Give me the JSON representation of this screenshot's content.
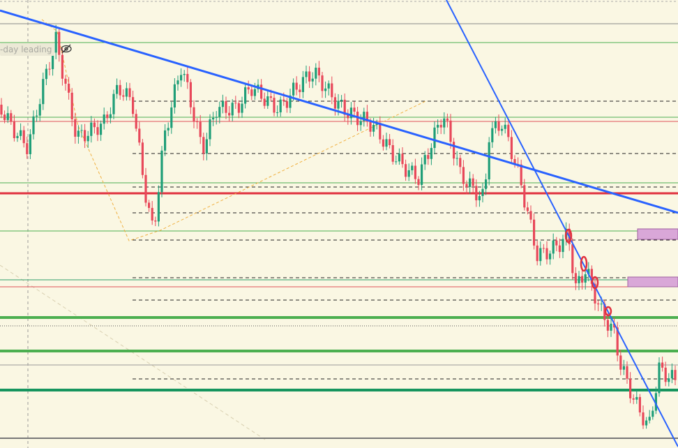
{
  "indicator_label": "-day leading"
}
